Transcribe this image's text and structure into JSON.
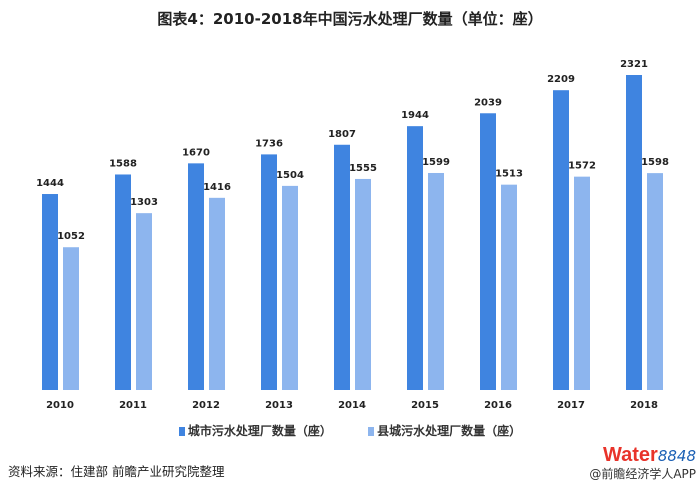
{
  "chart_data": {
    "type": "bar",
    "title": "图表4：2010-2018年中国污水处理厂数量（单位：座）",
    "categories": [
      "2010",
      "2011",
      "2012",
      "2013",
      "2014",
      "2015",
      "2016",
      "2017",
      "2018"
    ],
    "series": [
      {
        "name": "城市污水处理厂数量（座）",
        "color": "#3f84e0",
        "values": [
          1444,
          1588,
          1670,
          1736,
          1807,
          1944,
          2039,
          2209,
          2321
        ]
      },
      {
        "name": "县城污水处理厂数量（座）",
        "color": "#8db5ee",
        "values": [
          1052,
          1303,
          1416,
          1504,
          1555,
          1599,
          1513,
          1572,
          1598
        ]
      }
    ],
    "ylim": [
      0,
      2321
    ],
    "grid": false,
    "legend": "bottom"
  },
  "footer": {
    "source": "资料来源：住建部 前瞻产业研究院整理",
    "logo_water": "Water",
    "logo_num": "8848",
    "logo_caption": "@前瞻经济学人APP"
  }
}
